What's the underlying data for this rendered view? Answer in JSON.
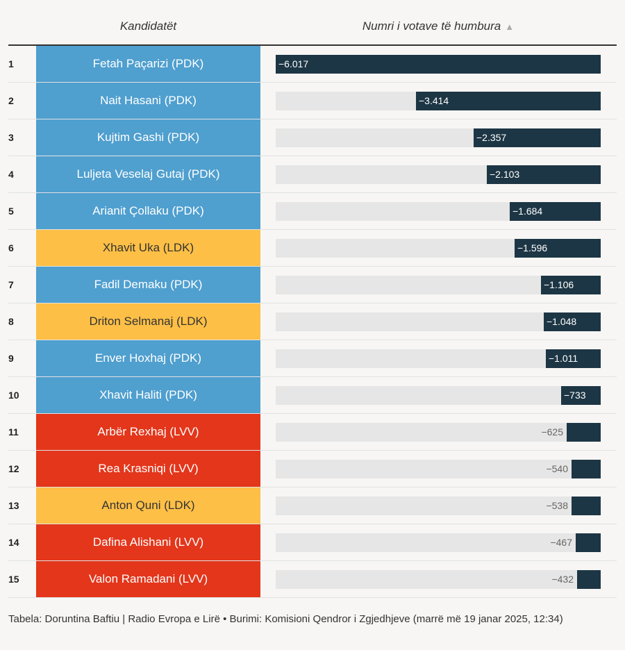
{
  "header": {
    "candidates_label": "Kandidatët",
    "votes_label": "Numri i votave të humbura",
    "sort_icon": "sort-ascending-triangle-icon"
  },
  "colors": {
    "PDK": "#4f9fcf",
    "LDK": "#fdbf46",
    "LVV": "#e3361b",
    "bar": "#1d3645",
    "track": "#e6e6e6"
  },
  "chart_data": {
    "type": "bar",
    "title": "",
    "xlabel": "Numri i votave të humbura",
    "ylabel": "Kandidatët",
    "xlim": [
      -6017,
      0
    ],
    "rows": [
      {
        "rank": "1",
        "name": "Fetah Paçarizi (PDK)",
        "party": "PDK",
        "value": -6017,
        "label": "−6.017"
      },
      {
        "rank": "2",
        "name": "Nait Hasani (PDK)",
        "party": "PDK",
        "value": -3414,
        "label": "−3.414"
      },
      {
        "rank": "3",
        "name": "Kujtim Gashi (PDK)",
        "party": "PDK",
        "value": -2357,
        "label": "−2.357"
      },
      {
        "rank": "4",
        "name": "Luljeta Veselaj Gutaj (PDK)",
        "party": "PDK",
        "value": -2103,
        "label": "−2.103"
      },
      {
        "rank": "5",
        "name": "Arianit Çollaku (PDK)",
        "party": "PDK",
        "value": -1684,
        "label": "−1.684"
      },
      {
        "rank": "6",
        "name": "Xhavit Uka (LDK)",
        "party": "LDK",
        "value": -1596,
        "label": "−1.596"
      },
      {
        "rank": "7",
        "name": "Fadil Demaku (PDK)",
        "party": "PDK",
        "value": -1106,
        "label": "−1.106"
      },
      {
        "rank": "8",
        "name": "Driton Selmanaj (LDK)",
        "party": "LDK",
        "value": -1048,
        "label": "−1.048"
      },
      {
        "rank": "9",
        "name": "Enver Hoxhaj (PDK)",
        "party": "PDK",
        "value": -1011,
        "label": "−1.011"
      },
      {
        "rank": "10",
        "name": "Xhavit Haliti (PDK)",
        "party": "PDK",
        "value": -733,
        "label": "−733"
      },
      {
        "rank": "11",
        "name": "Arbër Rexhaj (LVV)",
        "party": "LVV",
        "value": -625,
        "label": "−625"
      },
      {
        "rank": "12",
        "name": "Rea Krasniqi (LVV)",
        "party": "LVV",
        "value": -540,
        "label": "−540"
      },
      {
        "rank": "13",
        "name": "Anton Quni (LDK)",
        "party": "LDK",
        "value": -538,
        "label": "−538"
      },
      {
        "rank": "14",
        "name": "Dafina Alishani (LVV)",
        "party": "LVV",
        "value": -467,
        "label": "−467"
      },
      {
        "rank": "15",
        "name": "Valon Ramadani (LVV)",
        "party": "LVV",
        "value": -432,
        "label": "−432"
      }
    ]
  },
  "footer": {
    "text": "Tabela: Doruntina Baftiu | Radio Evropa e Lirë • Burimi: Komisioni Qendror i Zgjedhjeve (marrë më 19 janar 2025, 12:34)"
  }
}
